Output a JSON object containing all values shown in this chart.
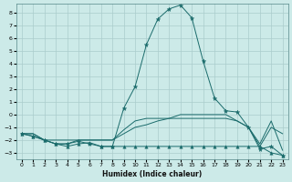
{
  "title": "",
  "xlabel": "Humidex (Indice chaleur)",
  "xlim": [
    -0.5,
    23.5
  ],
  "ylim": [
    -3.5,
    8.7
  ],
  "yticks": [
    -3,
    -2,
    -1,
    0,
    1,
    2,
    3,
    4,
    5,
    6,
    7,
    8
  ],
  "xticks": [
    0,
    1,
    2,
    3,
    4,
    5,
    6,
    7,
    8,
    9,
    10,
    11,
    12,
    13,
    14,
    15,
    16,
    17,
    18,
    19,
    20,
    21,
    22,
    23
  ],
  "background_color": "#cceae8",
  "grid_color": "#aacccc",
  "line_color": "#1a6b6b",
  "lines": [
    {
      "x": [
        0,
        1,
        2,
        3,
        4,
        5,
        6,
        7,
        8,
        9,
        10,
        11,
        12,
        13,
        14,
        15,
        16,
        17,
        18,
        19,
        20,
        21,
        22,
        23
      ],
      "y": [
        -1.5,
        -1.7,
        -2.0,
        -2.3,
        -2.3,
        -2.1,
        -2.3,
        -2.5,
        -2.5,
        0.5,
        2.2,
        5.5,
        7.5,
        8.3,
        8.6,
        7.6,
        4.2,
        1.3,
        0.3,
        0.2,
        -1.0,
        -2.7,
        -2.5,
        -3.2
      ],
      "marker": "*",
      "markersize": 3.5
    },
    {
      "x": [
        0,
        1,
        2,
        3,
        4,
        5,
        6,
        7,
        8,
        9,
        10,
        11,
        12,
        13,
        14,
        15,
        16,
        17,
        18,
        19,
        20,
        21,
        22,
        23
      ],
      "y": [
        -1.5,
        -1.7,
        -2.0,
        -2.3,
        -2.5,
        -2.3,
        -2.2,
        -2.5,
        -2.5,
        -2.5,
        -2.5,
        -2.5,
        -2.5,
        -2.5,
        -2.5,
        -2.5,
        -2.5,
        -2.5,
        -2.5,
        -2.5,
        -2.5,
        -2.5,
        -3.0,
        -3.2
      ],
      "marker": "^",
      "markersize": 2.5
    },
    {
      "x": [
        0,
        1,
        2,
        3,
        4,
        5,
        6,
        7,
        8,
        9,
        10,
        11,
        12,
        13,
        14,
        15,
        16,
        17,
        18,
        19,
        20,
        21,
        22,
        23
      ],
      "y": [
        -1.5,
        -1.5,
        -2.0,
        -2.0,
        -2.0,
        -2.0,
        -2.0,
        -2.0,
        -2.0,
        -1.5,
        -1.0,
        -0.8,
        -0.5,
        -0.3,
        0.0,
        0.0,
        0.0,
        0.0,
        0.0,
        -0.5,
        -1.0,
        -2.5,
        -1.0,
        -1.5
      ],
      "marker": null,
      "markersize": 0
    },
    {
      "x": [
        0,
        1,
        2,
        3,
        4,
        5,
        6,
        7,
        8,
        9,
        10,
        11,
        12,
        13,
        14,
        15,
        16,
        17,
        18,
        19,
        20,
        21,
        22,
        23
      ],
      "y": [
        -1.5,
        -1.5,
        -2.0,
        -2.3,
        -2.3,
        -2.0,
        -2.0,
        -2.0,
        -2.0,
        -1.2,
        -0.5,
        -0.3,
        -0.3,
        -0.3,
        -0.3,
        -0.3,
        -0.3,
        -0.3,
        -0.3,
        -0.5,
        -1.0,
        -2.3,
        -0.5,
        -2.8
      ],
      "marker": null,
      "markersize": 0
    }
  ]
}
